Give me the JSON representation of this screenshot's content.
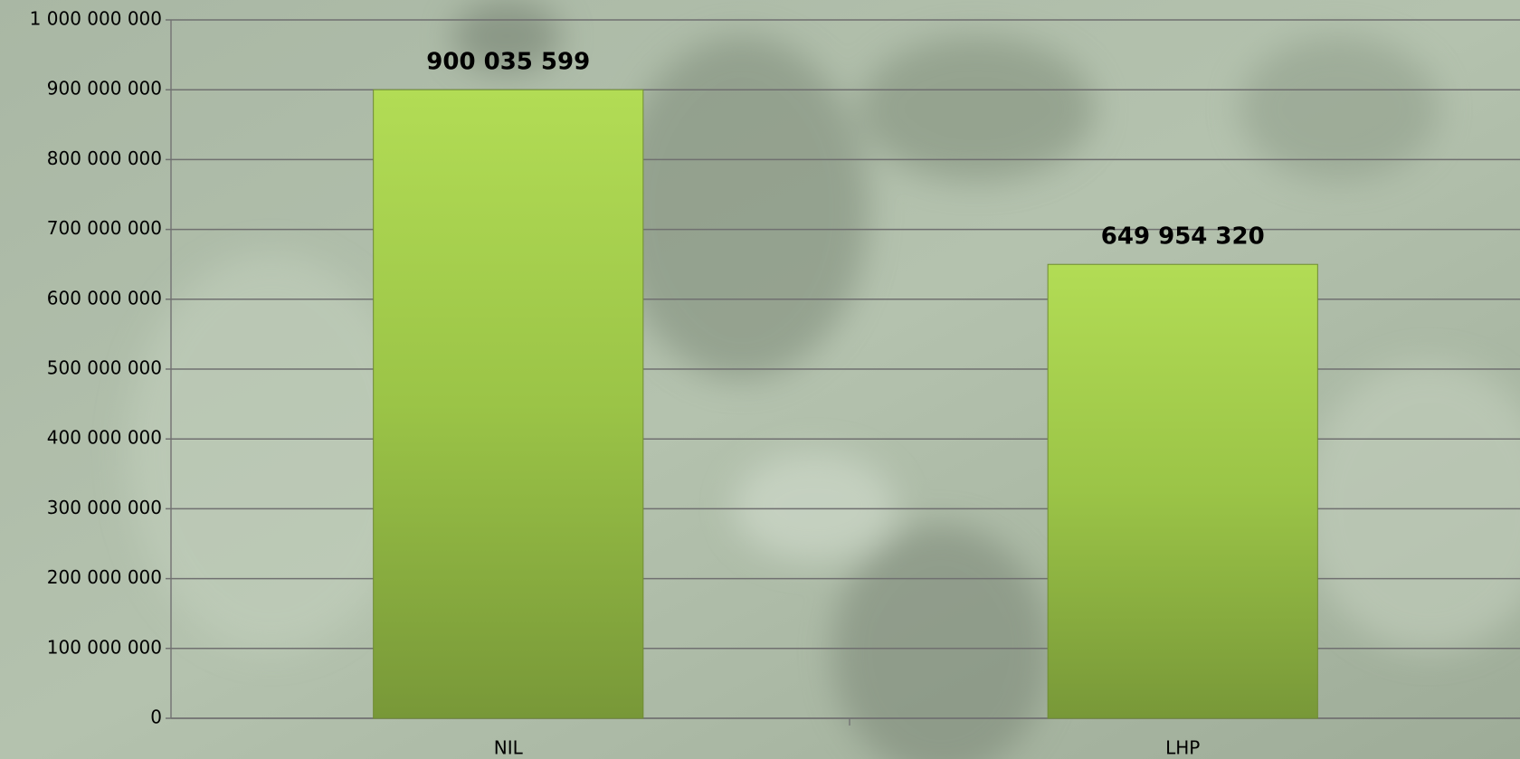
{
  "chart_data": {
    "type": "bar",
    "categories": [
      "NIL",
      "LHP"
    ],
    "values": [
      900035599,
      649954320
    ],
    "value_labels": [
      "900 035 599",
      "649 954 320"
    ],
    "ylim": [
      0,
      1000000000
    ],
    "yticks": [
      0,
      {
        "value": 100000000,
        "label": "100 000 000"
      },
      {
        "value": 200000000,
        "label": "200 000 000"
      },
      {
        "value": 300000000,
        "label": "300 000 000"
      },
      {
        "value": 400000000,
        "label": "400 000 000"
      },
      {
        "value": 500000000,
        "label": "500 000 000"
      },
      {
        "value": 600000000,
        "label": "600 000 000"
      },
      {
        "value": 700000000,
        "label": "700 000 000"
      },
      {
        "value": 800000000,
        "label": "800 000 000"
      },
      {
        "value": 900000000,
        "label": "900 000 000"
      },
      {
        "value": 1000000000,
        "label": "1 000 000 000"
      }
    ],
    "grid": true,
    "color": "#9bc447"
  }
}
